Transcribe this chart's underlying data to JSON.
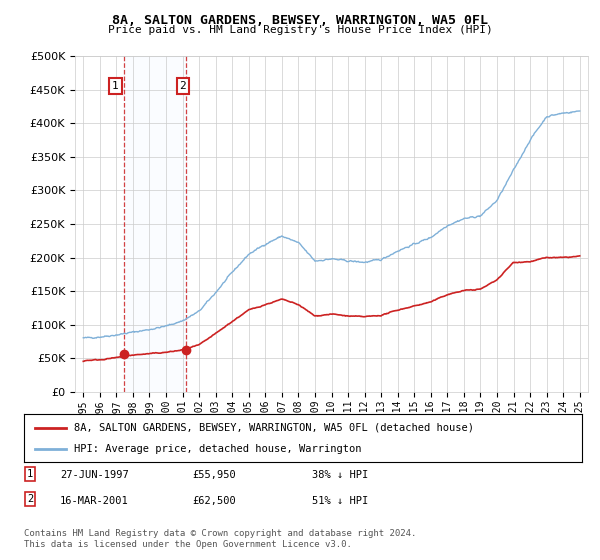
{
  "title1": "8A, SALTON GARDENS, BEWSEY, WARRINGTON, WA5 0FL",
  "title2": "Price paid vs. HM Land Registry's House Price Index (HPI)",
  "legend_line1": "8A, SALTON GARDENS, BEWSEY, WARRINGTON, WA5 0FL (detached house)",
  "legend_line2": "HPI: Average price, detached house, Warrington",
  "annotation1_date": "27-JUN-1997",
  "annotation1_price": "£55,950",
  "annotation1_hpi": "38% ↓ HPI",
  "annotation2_date": "16-MAR-2001",
  "annotation2_price": "£62,500",
  "annotation2_hpi": "51% ↓ HPI",
  "purchase1_year": 1997.49,
  "purchase1_price": 55950,
  "purchase2_year": 2001.21,
  "purchase2_price": 62500,
  "footer": "Contains HM Land Registry data © Crown copyright and database right 2024.\nThis data is licensed under the Open Government Licence v3.0.",
  "hpi_color": "#7fb0d8",
  "red_color": "#cc2222",
  "shade_color": "#ddeeff",
  "grid_color": "#cccccc",
  "bg_color": "#ffffff",
  "ylim": [
    0,
    500000
  ],
  "xlim_start": 1994.5,
  "xlim_end": 2025.5,
  "hpi_anchors_x": [
    1995,
    1996,
    1997,
    1998,
    1999,
    2000,
    2001,
    2002,
    2003,
    2004,
    2005,
    2006,
    2007,
    2008,
    2009,
    2010,
    2011,
    2012,
    2013,
    2014,
    2015,
    2016,
    2017,
    2018,
    2019,
    2020,
    2021,
    2022,
    2023,
    2024,
    2025
  ],
  "hpi_anchors_y": [
    80000,
    82000,
    85000,
    89000,
    93000,
    98000,
    106000,
    120000,
    148000,
    178000,
    205000,
    220000,
    232000,
    222000,
    195000,
    198000,
    195000,
    193000,
    197000,
    210000,
    220000,
    230000,
    248000,
    258000,
    262000,
    285000,
    330000,
    375000,
    410000,
    415000,
    418000
  ],
  "red_anchors_x": [
    1995,
    1996,
    1997,
    1998,
    1999,
    2000,
    2001,
    2002,
    2003,
    2004,
    2005,
    2006,
    2007,
    2008,
    2009,
    2010,
    2011,
    2012,
    2013,
    2014,
    2015,
    2016,
    2017,
    2018,
    2019,
    2020,
    2021,
    2022,
    2023,
    2024,
    2025
  ],
  "red_anchors_y": [
    47000,
    48000,
    51000,
    55000,
    57000,
    59000,
    62500,
    70000,
    87000,
    105000,
    122000,
    130000,
    138000,
    130000,
    113000,
    116000,
    113000,
    112000,
    114000,
    122000,
    128000,
    134000,
    145000,
    151000,
    153000,
    167000,
    193000,
    194000,
    200000,
    200000,
    202000
  ]
}
